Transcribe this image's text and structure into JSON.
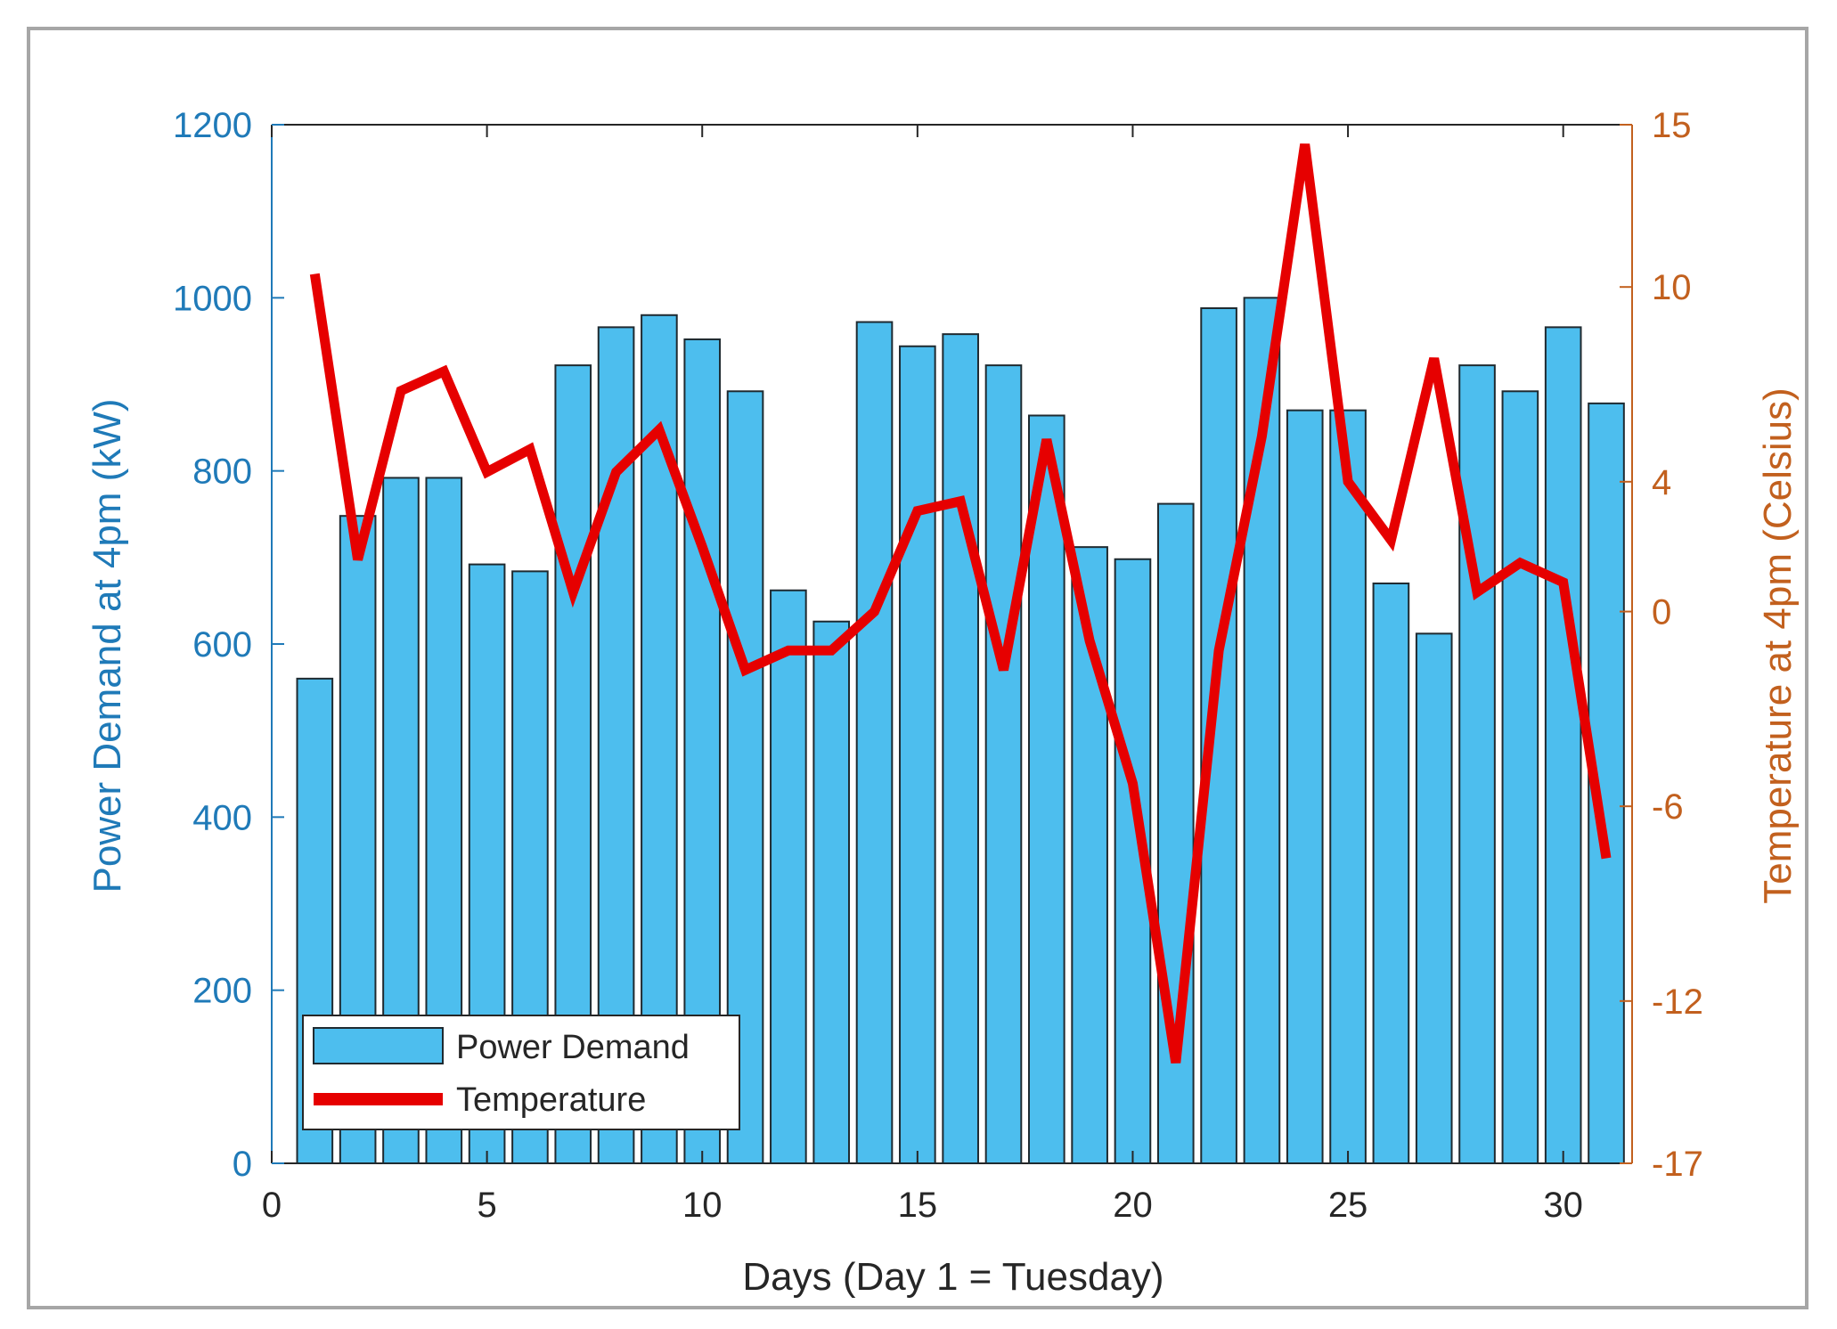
{
  "colors": {
    "bar_fill": "#4dbeee",
    "bar_edge": "#1f2a30",
    "line": "#e60000",
    "left_axis": "#1f7ab8",
    "right_axis": "#c2601e",
    "x_axis": "#262626",
    "frame": "#a6a6a6"
  },
  "chart_data": {
    "type": "bar+line",
    "xlabel": "Days (Day 1 = Tuesday)",
    "ylabel_left": "Power Demand at 4pm (kW)",
    "ylabel_right": "Temperature at 4pm (Celsius)",
    "xlim": [
      0,
      31.6
    ],
    "ylim_left": [
      0,
      1200
    ],
    "ylim_right": [
      -17,
      15
    ],
    "x_ticks": [
      0,
      5,
      10,
      15,
      20,
      25,
      30
    ],
    "y_ticks_left": [
      0,
      200,
      400,
      600,
      800,
      1000,
      1200
    ],
    "y_ticks_right": [
      -17,
      -12,
      -6,
      0,
      4,
      10,
      15
    ],
    "x_tick_labels": [
      "0",
      "5",
      "10",
      "15",
      "20",
      "25",
      "30"
    ],
    "y_tick_labels_left": [
      "0",
      "200",
      "400",
      "600",
      "800",
      "1000",
      "1200"
    ],
    "y_tick_labels_right": [
      "-17",
      "-12",
      "-6",
      "0",
      "4",
      "10",
      "15"
    ],
    "x": [
      1,
      2,
      3,
      4,
      5,
      6,
      7,
      8,
      9,
      10,
      11,
      12,
      13,
      14,
      15,
      16,
      17,
      18,
      19,
      20,
      21,
      22,
      23,
      24,
      25,
      26,
      27,
      28,
      29,
      30,
      31
    ],
    "series": [
      {
        "name": "Power Demand",
        "kind": "bar",
        "axis": "left",
        "values": [
          560,
          748,
          792,
          792,
          692,
          684,
          922,
          966,
          980,
          952,
          892,
          662,
          626,
          972,
          944,
          958,
          922,
          864,
          712,
          698,
          762,
          988,
          1000,
          870,
          870,
          670,
          612,
          922,
          892,
          966,
          878
        ]
      },
      {
        "name": "Temperature",
        "kind": "line",
        "axis": "right",
        "values": [
          10.4,
          1.6,
          6.8,
          7.4,
          4.3,
          5.0,
          0.6,
          4.3,
          5.6,
          2.0,
          -1.8,
          -1.2,
          -1.2,
          0.0,
          3.1,
          3.4,
          -1.8,
          5.3,
          -0.9,
          -5.3,
          -13.9,
          -1.2,
          5.4,
          14.4,
          4.0,
          2.2,
          7.8,
          0.6,
          1.5,
          0.9,
          -7.6
        ]
      }
    ],
    "legend": {
      "position": "bottom-left",
      "entries": [
        "Power Demand",
        "Temperature"
      ]
    },
    "grid": false
  }
}
